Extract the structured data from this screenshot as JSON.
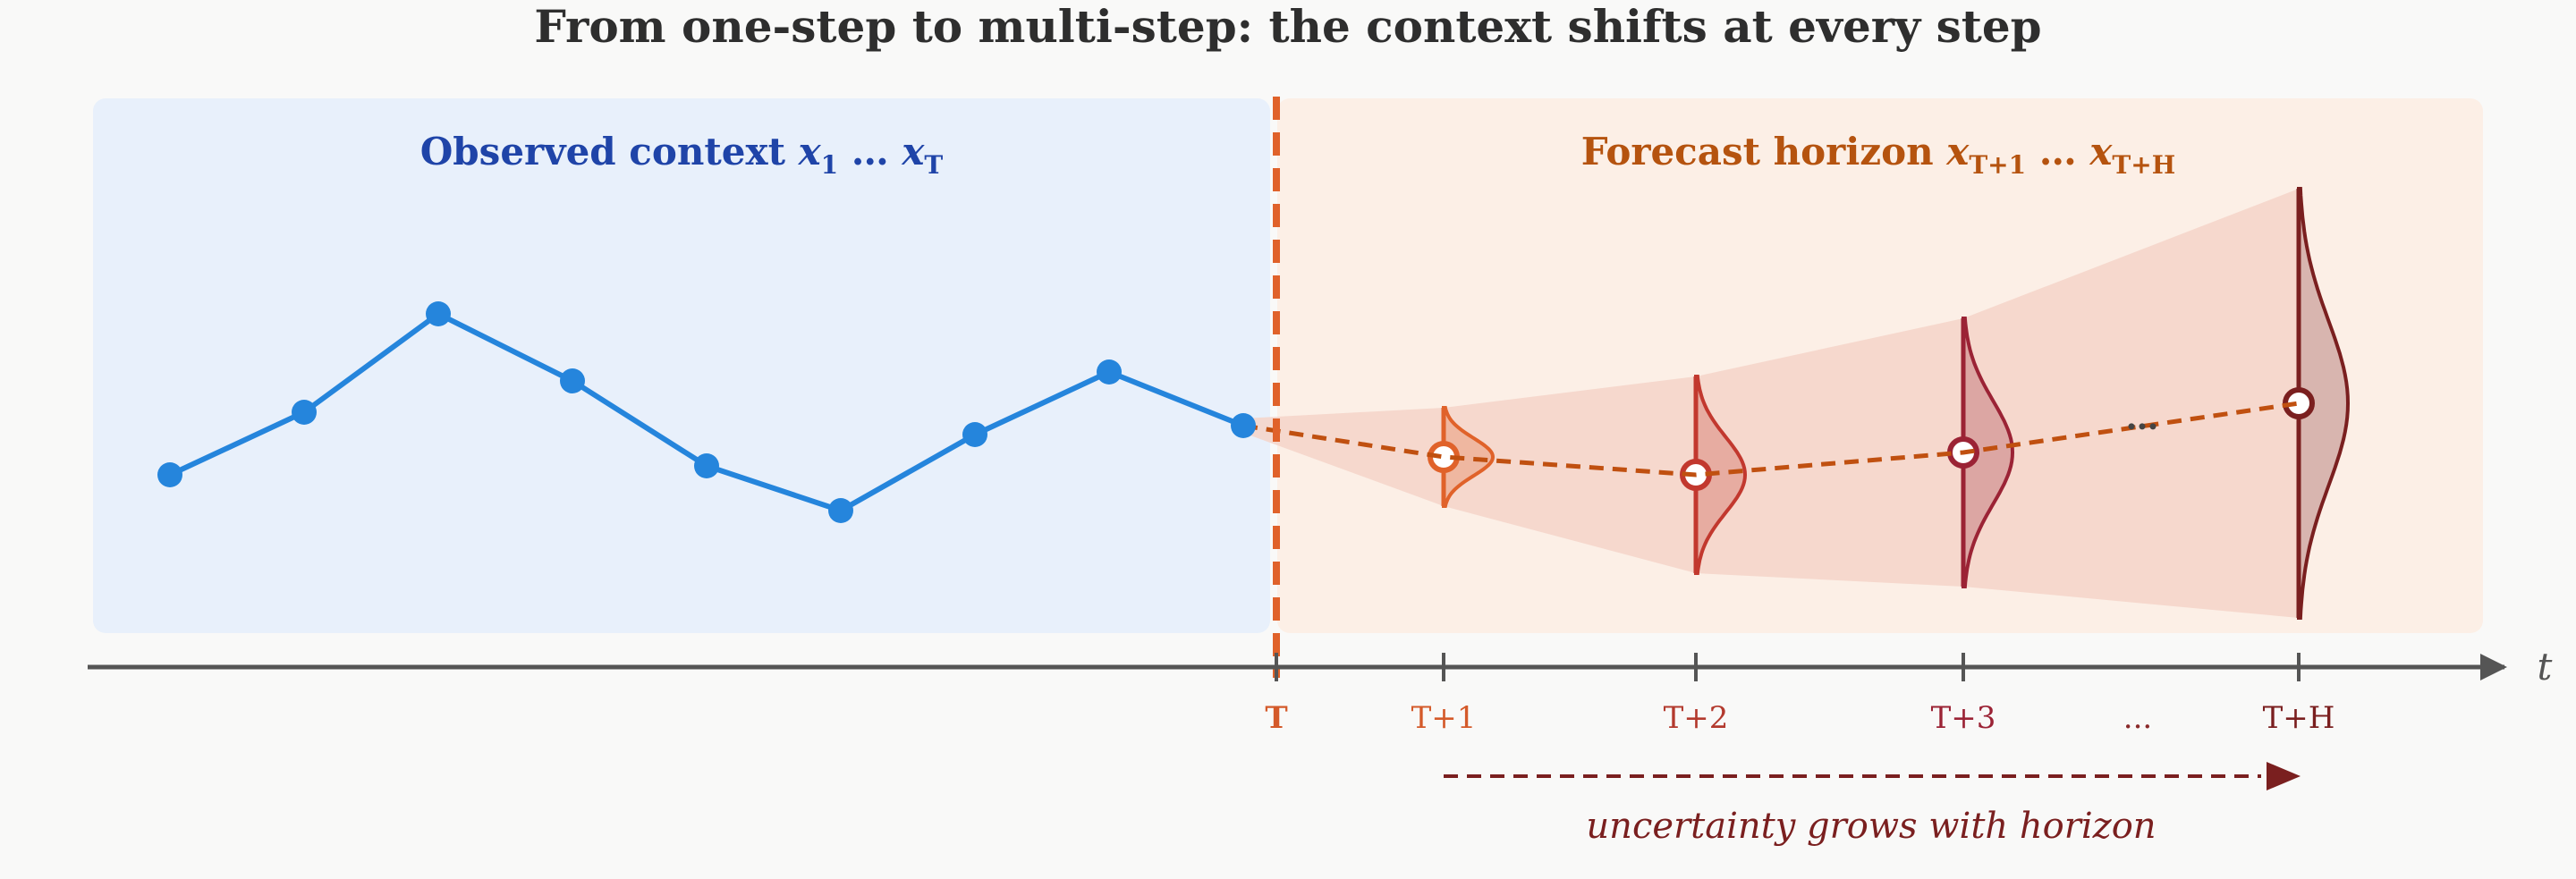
{
  "title": "From one-step to multi-step: the context shifts at every step",
  "context_panel": {
    "label_text": "Observed context ",
    "var": "x",
    "sub_start": "1",
    "ellipsis": " … ",
    "sub_end": "T",
    "color": "#1f44a8",
    "bg": "#e8f0fb"
  },
  "horizon_panel": {
    "label_text": "Forecast horizon ",
    "var": "x",
    "sub_start": "T+1",
    "ellipsis": " … ",
    "sub_end": "T+H",
    "color": "#b5530f",
    "bg": "#fcefe6"
  },
  "axis": {
    "time_symbol": "t",
    "ticks": [
      {
        "label": "T",
        "color": "#d45a2a",
        "bold": true
      },
      {
        "label": "T+1",
        "color": "#d45a2a",
        "bold": false
      },
      {
        "label": "T+2",
        "color": "#b33a2e",
        "bold": false
      },
      {
        "label": "T+3",
        "color": "#9b2335",
        "bold": false
      },
      {
        "label": "...",
        "color": "#8a2a2a",
        "bold": false
      },
      {
        "label": "T+H",
        "color": "#7a1f1f",
        "bold": false
      }
    ]
  },
  "caption": "uncertainty grows with horizon",
  "colors": {
    "observed_line": "#2585dc",
    "divider": "#e0622a",
    "forecast_path": "#c05010",
    "band": "#f5d3c8",
    "arrow": "#7a1f1f"
  },
  "observed_series": [
    -0.55,
    0.15,
    1.25,
    0.5,
    -0.45,
    -0.95,
    -0.1,
    0.6,
    0.0
  ],
  "forecast": [
    {
      "step": "T+1",
      "mean": -0.35,
      "spread": 0.55,
      "color": "#e0622a"
    },
    {
      "step": "T+2",
      "mean": -0.55,
      "spread": 1.1,
      "color": "#c2382e"
    },
    {
      "step": "T+3",
      "mean": -0.3,
      "spread": 1.5,
      "color": "#9b2335"
    },
    {
      "step": "T+H",
      "mean": 0.25,
      "spread": 2.4,
      "color": "#7a1f1f"
    }
  ]
}
